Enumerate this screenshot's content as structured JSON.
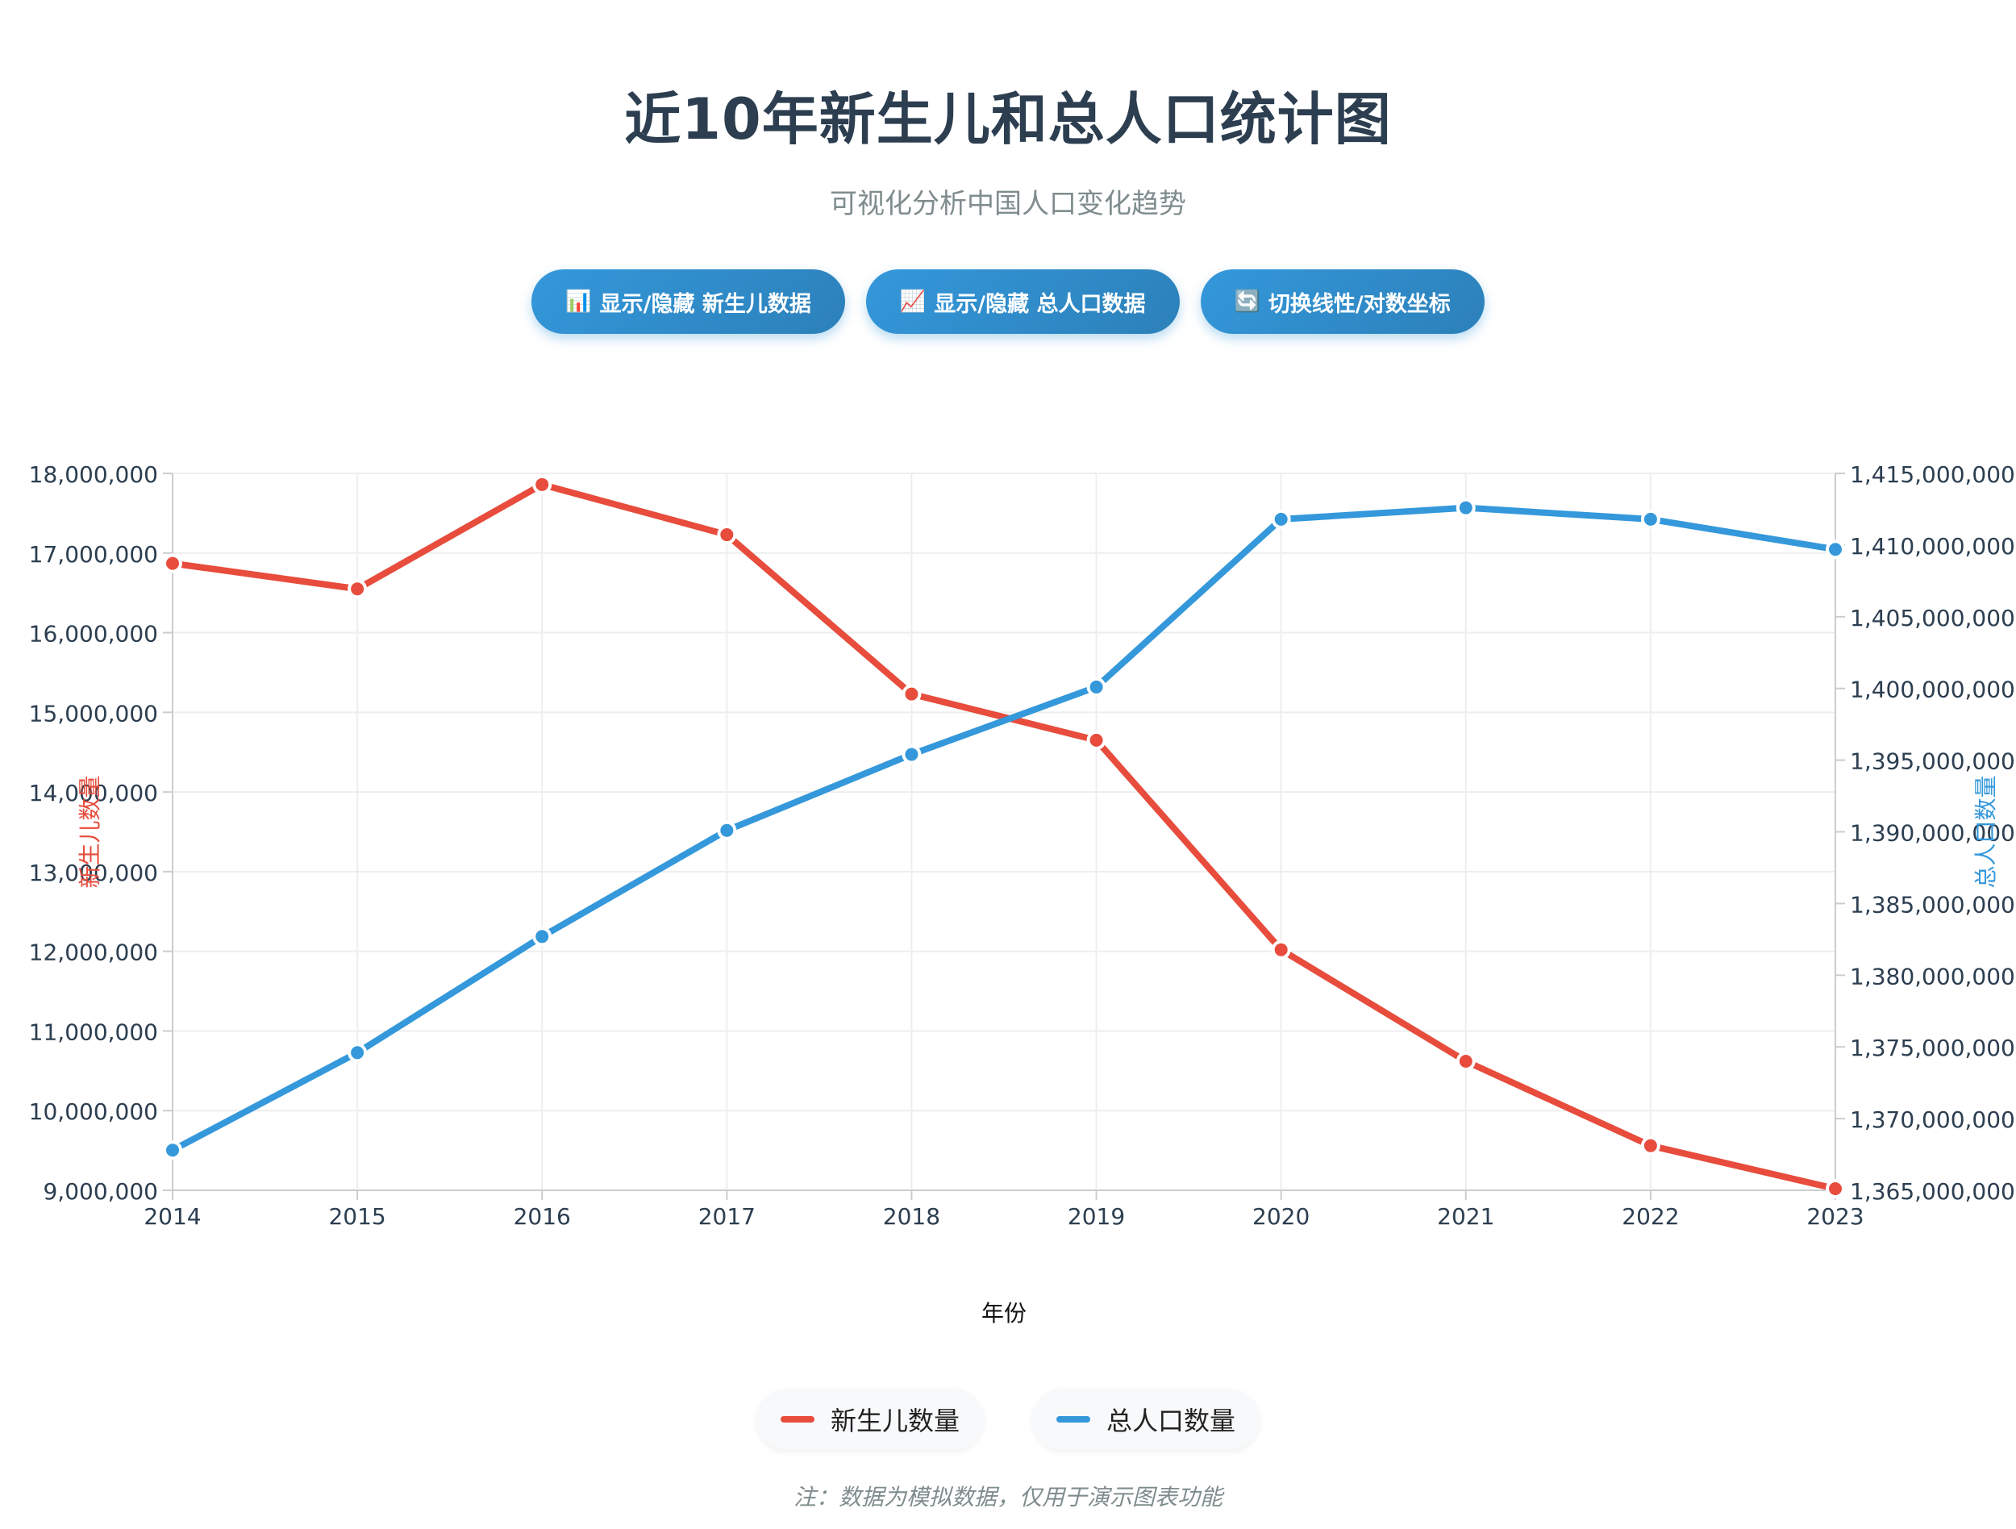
{
  "header": {
    "title": "近10年新生儿和总人口统计图",
    "subtitle": "可视化分析中国人口变化趋势"
  },
  "controls": [
    {
      "icon": "bar-chart-icon",
      "glyph": "📊",
      "label": "显示/隐藏 新生儿数据"
    },
    {
      "icon": "line-chart-icon",
      "glyph": "📈",
      "label": "显示/隐藏 总人口数据"
    },
    {
      "icon": "refresh-icon",
      "glyph": "🔄",
      "label": "切换线性/对数坐标"
    }
  ],
  "colors": {
    "newborn": "#e74c3c",
    "population": "#3498db",
    "grid": "#eeeeee",
    "axis_text": "#2c3e50"
  },
  "chart_data": {
    "type": "line",
    "x": [
      "2014",
      "2015",
      "2016",
      "2017",
      "2018",
      "2019",
      "2020",
      "2021",
      "2022",
      "2023"
    ],
    "xlabel": "年份",
    "series": [
      {
        "name": "新生儿数量",
        "axis": "left",
        "values": [
          16870000,
          16550000,
          17860000,
          17230000,
          15230000,
          14650000,
          12020000,
          10620000,
          9560000,
          9020000
        ]
      },
      {
        "name": "总人口数量",
        "axis": "right",
        "values": [
          1367800000,
          1374600000,
          1382700000,
          1390100000,
          1395400000,
          1400100000,
          1411800000,
          1412600000,
          1411800000,
          1409700000
        ]
      }
    ],
    "y_left": {
      "label": "新生儿数量",
      "ylim": [
        9000000,
        18000000
      ],
      "ticks": [
        "9,000,000",
        "10,000,000",
        "11,000,000",
        "12,000,000",
        "13,000,000",
        "14,000,000",
        "15,000,000",
        "16,000,000",
        "17,000,000",
        "18,000,000"
      ]
    },
    "y_right": {
      "label": "总人口数量",
      "ylim": [
        1365000000,
        1415000000
      ],
      "ticks": [
        "1,365,000,000",
        "1,370,000,000",
        "1,375,000,000",
        "1,380,000,000",
        "1,385,000,000",
        "1,390,000,000",
        "1,395,000,000",
        "1,400,000,000",
        "1,405,000,000",
        "1,410,000,000",
        "1,415,000,000"
      ]
    },
    "grid": true,
    "legend_position": "bottom"
  },
  "legend": [
    {
      "label": "新生儿数量"
    },
    {
      "label": "总人口数量"
    }
  ],
  "footer": {
    "note": "注：数据为模拟数据，仅用于演示图表功能"
  }
}
